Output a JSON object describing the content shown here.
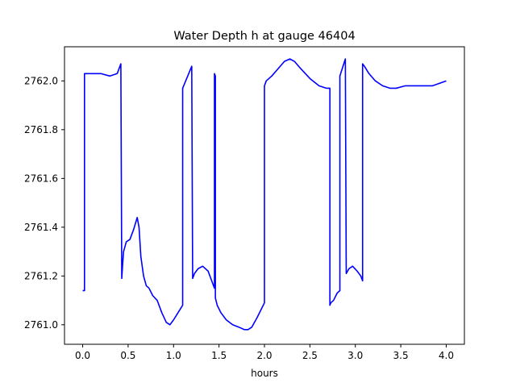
{
  "chart_data": {
    "type": "line",
    "title": "Water Depth h at gauge 46404",
    "xlabel": "hours",
    "ylabel": "",
    "xlim": [
      -0.2,
      4.2
    ],
    "ylim": [
      2760.92,
      2762.14
    ],
    "xticks": [
      0.0,
      0.5,
      1.0,
      1.5,
      2.0,
      2.5,
      3.0,
      3.5,
      4.0
    ],
    "xtick_labels": [
      "0.0",
      "0.5",
      "1.0",
      "1.5",
      "2.0",
      "2.5",
      "3.0",
      "3.5",
      "4.0"
    ],
    "yticks": [
      2761.0,
      2761.2,
      2761.4,
      2761.6,
      2761.8,
      2762.0
    ],
    "ytick_labels": [
      "2761.0",
      "2761.2",
      "2761.4",
      "2761.6",
      "2761.8",
      "2762.0"
    ],
    "grid": false,
    "legend": null,
    "series": [
      {
        "color": "#0000ff",
        "x": [
          0.0,
          0.02,
          0.02,
          0.1,
          0.2,
          0.3,
          0.38,
          0.42,
          0.43,
          0.44,
          0.45,
          0.48,
          0.52,
          0.56,
          0.6,
          0.62,
          0.64,
          0.67,
          0.7,
          0.73,
          0.77,
          0.82,
          0.87,
          0.92,
          0.96,
          1.0,
          1.05,
          1.1,
          1.1,
          1.2,
          1.21,
          1.23,
          1.27,
          1.32,
          1.38,
          1.42,
          1.45,
          1.45,
          1.46,
          1.46,
          1.48,
          1.52,
          1.58,
          1.65,
          1.72,
          1.78,
          1.82,
          1.86,
          1.92,
          2.0,
          2.0,
          2.02,
          2.08,
          2.15,
          2.22,
          2.28,
          2.33,
          2.4,
          2.5,
          2.6,
          2.68,
          2.72,
          2.72,
          2.73,
          2.76,
          2.8,
          2.83,
          2.83,
          2.89,
          2.9,
          2.93,
          2.97,
          3.02,
          3.06,
          3.08,
          3.08,
          3.1,
          3.15,
          3.22,
          3.3,
          3.38,
          3.45,
          3.55,
          3.7,
          3.85,
          4.0
        ],
        "y": [
          2761.14,
          2761.14,
          2762.03,
          2762.03,
          2762.03,
          2762.02,
          2762.03,
          2762.07,
          2761.19,
          2761.25,
          2761.3,
          2761.34,
          2761.35,
          2761.39,
          2761.44,
          2761.4,
          2761.28,
          2761.2,
          2761.16,
          2761.15,
          2761.12,
          2761.1,
          2761.05,
          2761.01,
          2761.0,
          2761.02,
          2761.05,
          2761.08,
          2761.97,
          2762.06,
          2761.19,
          2761.21,
          2761.23,
          2761.24,
          2761.22,
          2761.18,
          2761.15,
          2762.03,
          2762.02,
          2761.11,
          2761.08,
          2761.05,
          2761.02,
          2761.0,
          2760.99,
          2760.98,
          2760.98,
          2760.99,
          2761.03,
          2761.09,
          2761.98,
          2762.0,
          2762.02,
          2762.05,
          2762.08,
          2762.09,
          2762.08,
          2762.05,
          2762.01,
          2761.98,
          2761.97,
          2761.97,
          2761.08,
          2761.09,
          2761.1,
          2761.13,
          2761.14,
          2762.02,
          2762.09,
          2761.21,
          2761.23,
          2761.24,
          2761.22,
          2761.2,
          2761.18,
          2762.07,
          2762.06,
          2762.03,
          2762.0,
          2761.98,
          2761.97,
          2761.97,
          2761.98,
          2761.98,
          2761.98,
          2762.0
        ]
      }
    ]
  },
  "colors": {
    "line": "#0000ff",
    "axes": "#000000",
    "background": "#ffffff"
  }
}
